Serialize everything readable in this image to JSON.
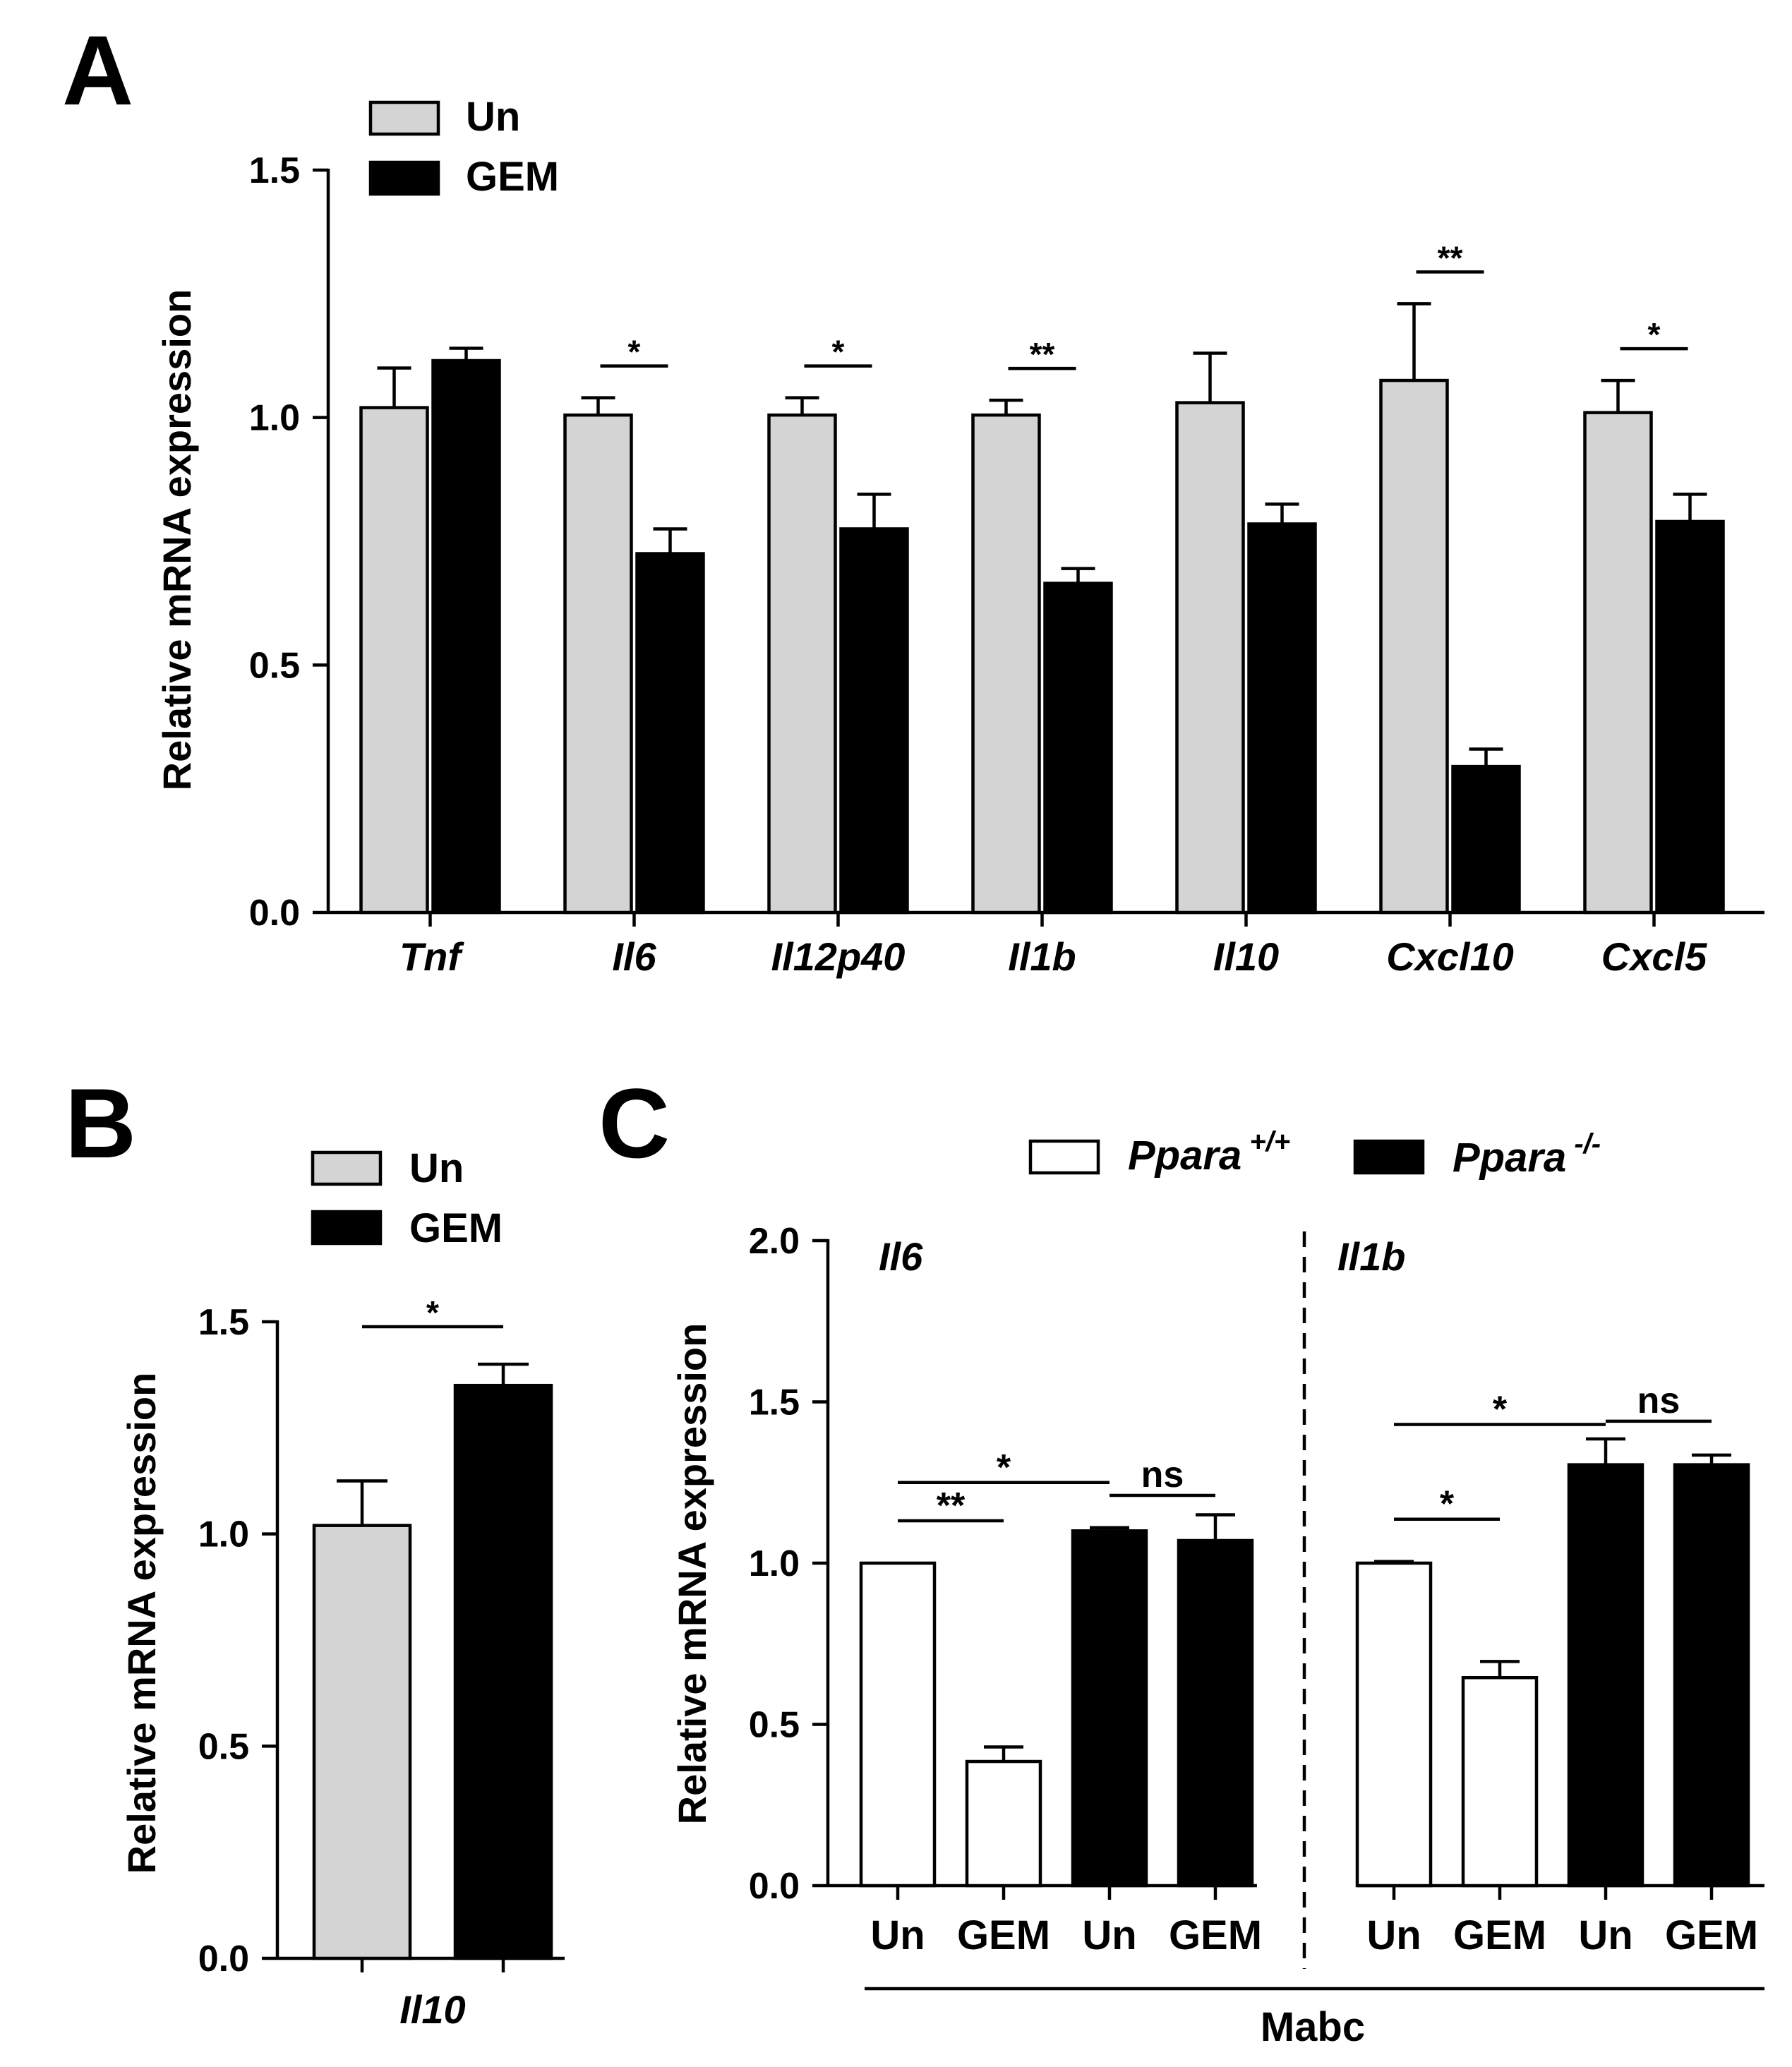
{
  "colors": {
    "un": "#d4d4d4",
    "gem": "#000000",
    "wt": "#ffffff",
    "ko": "#000000",
    "stroke": "#000000"
  },
  "panels": {
    "a": "A",
    "b": "B",
    "c": "C"
  },
  "chart_data": [
    {
      "panel": "A",
      "type": "bar",
      "ylabel": "Relative mRNA expression",
      "ylim": [
        0,
        1.5
      ],
      "yticks": [
        "0.0",
        "0.5",
        "1.0",
        "1.5"
      ],
      "categories": [
        "Tnf",
        "Il6",
        "Il12p40",
        "Il1b",
        "Il10",
        "Cxcl10",
        "Cxcl5"
      ],
      "series": [
        {
          "name": "Un",
          "values": [
            1.02,
            1.005,
            1.005,
            1.005,
            1.03,
            1.075,
            1.01
          ],
          "errors": [
            0.08,
            0.035,
            0.035,
            0.03,
            0.1,
            0.155,
            0.065
          ]
        },
        {
          "name": "GEM",
          "values": [
            1.115,
            0.725,
            0.775,
            0.665,
            0.785,
            0.295,
            0.79
          ],
          "errors": [
            0.025,
            0.05,
            0.07,
            0.03,
            0.04,
            0.035,
            0.055
          ]
        }
      ],
      "legend": {
        "position": "top-left",
        "labels": [
          "Un",
          "GEM"
        ]
      },
      "significance": [
        {
          "category": 1,
          "label": "*"
        },
        {
          "category": 2,
          "label": "*"
        },
        {
          "category": 3,
          "label": "**"
        },
        {
          "category": 5,
          "label": "**"
        },
        {
          "category": 6,
          "label": "*"
        }
      ]
    },
    {
      "panel": "B",
      "type": "bar",
      "ylabel": "Relative mRNA expression",
      "ylim": [
        0,
        1.5
      ],
      "yticks": [
        "0.0",
        "0.5",
        "1.0",
        "1.5"
      ],
      "categories": [
        "Il10"
      ],
      "series": [
        {
          "name": "Un",
          "values": [
            1.02
          ],
          "errors": [
            0.105
          ]
        },
        {
          "name": "GEM",
          "values": [
            1.35
          ],
          "errors": [
            0.05
          ]
        }
      ],
      "legend": {
        "position": "top-left",
        "labels": [
          "Un",
          "GEM"
        ]
      },
      "significance": [
        {
          "label": "*"
        }
      ]
    },
    {
      "panel": "C",
      "type": "bar",
      "ylabel": "Relative mRNA expression",
      "ylim": [
        0,
        2.0
      ],
      "yticks": [
        "0.0",
        "0.5",
        "1.0",
        "1.5",
        "2.0"
      ],
      "xgroup_label": "Mabc",
      "legend": {
        "position": "top",
        "entries": [
          {
            "name": "Ppara",
            "sup": "+/+"
          },
          {
            "name": "Ppara",
            "sup": "-/-"
          }
        ]
      },
      "groups": [
        {
          "gene": "Il6",
          "bars": [
            {
              "label": "Un",
              "genotype": "+/+",
              "value": 1.0,
              "error": 0.0
            },
            {
              "label": "GEM",
              "genotype": "+/+",
              "value": 0.385,
              "error": 0.045
            },
            {
              "label": "Un",
              "genotype": "-/-",
              "value": 1.1,
              "error": 0.01
            },
            {
              "label": "GEM",
              "genotype": "-/-",
              "value": 1.07,
              "error": 0.08
            }
          ],
          "significance": [
            {
              "label": "**",
              "from": 0,
              "to": 1
            },
            {
              "label": "*",
              "from": 0,
              "to": 2
            },
            {
              "label": "ns",
              "from": 2,
              "to": 3
            }
          ]
        },
        {
          "gene": "Il1b",
          "bars": [
            {
              "label": "Un",
              "genotype": "+/+",
              "value": 1.0,
              "error": 0.005
            },
            {
              "label": "GEM",
              "genotype": "+/+",
              "value": 0.645,
              "error": 0.05
            },
            {
              "label": "Un",
              "genotype": "-/-",
              "value": 1.305,
              "error": 0.08
            },
            {
              "label": "GEM",
              "genotype": "-/-",
              "value": 1.305,
              "error": 0.03
            }
          ],
          "significance": [
            {
              "label": "*",
              "from": 0,
              "to": 1
            },
            {
              "label": "*",
              "from": 0,
              "to": 2
            },
            {
              "label": "ns",
              "from": 2,
              "to": 3
            }
          ]
        }
      ]
    }
  ]
}
